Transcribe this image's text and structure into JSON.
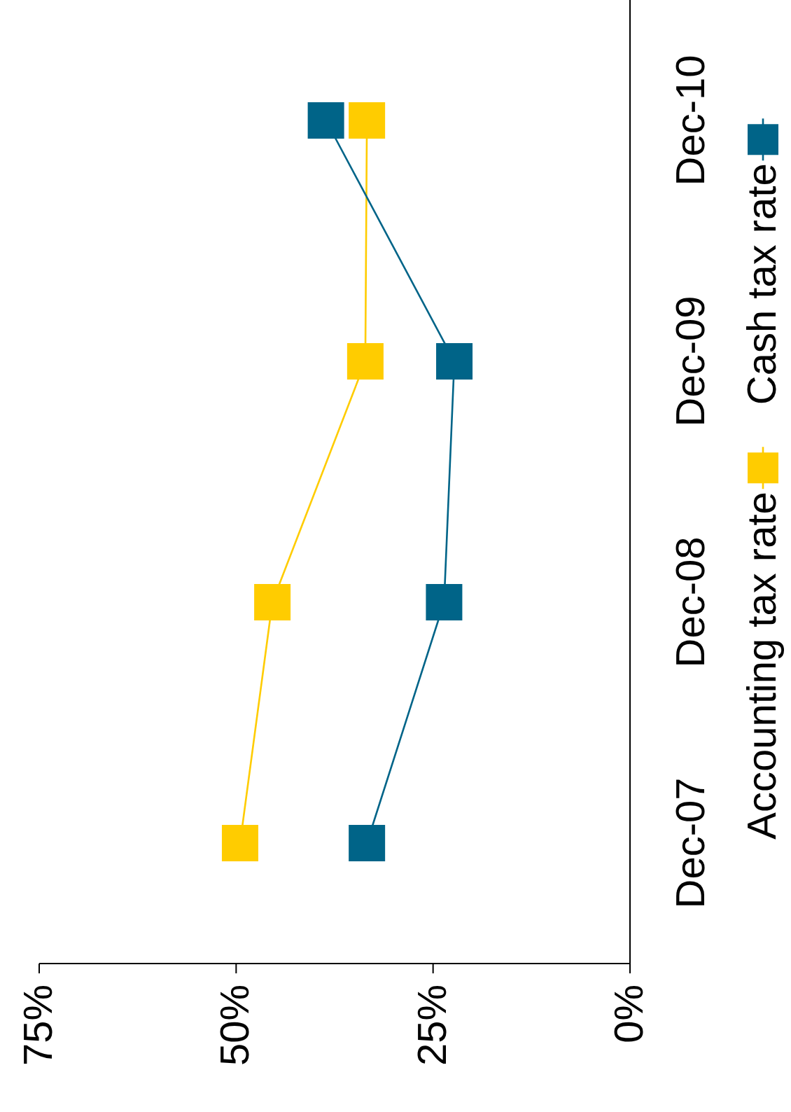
{
  "chart_data": {
    "type": "line",
    "orientation": "horizontal",
    "categories": [
      "Dec-10",
      "Dec-09",
      "Dec-08",
      "Dec-07"
    ],
    "series": [
      {
        "name": "Accounting tax rate",
        "color": "#ffcc00",
        "values": [
          33.4,
          33.6,
          45.4,
          49.5
        ]
      },
      {
        "name": "Cash tax rate",
        "color": "#006488",
        "values": [
          38.6,
          22.3,
          23.6,
          33.4
        ]
      }
    ],
    "xlim": [
      75,
      0
    ],
    "xticks": [
      {
        "value": 0,
        "label": "0%"
      },
      {
        "value": 25,
        "label": "25%"
      },
      {
        "value": 50,
        "label": "50%"
      },
      {
        "value": 75,
        "label": "75%"
      }
    ],
    "grid": false,
    "legend": "right",
    "marker": "square",
    "line_style": "solid"
  }
}
